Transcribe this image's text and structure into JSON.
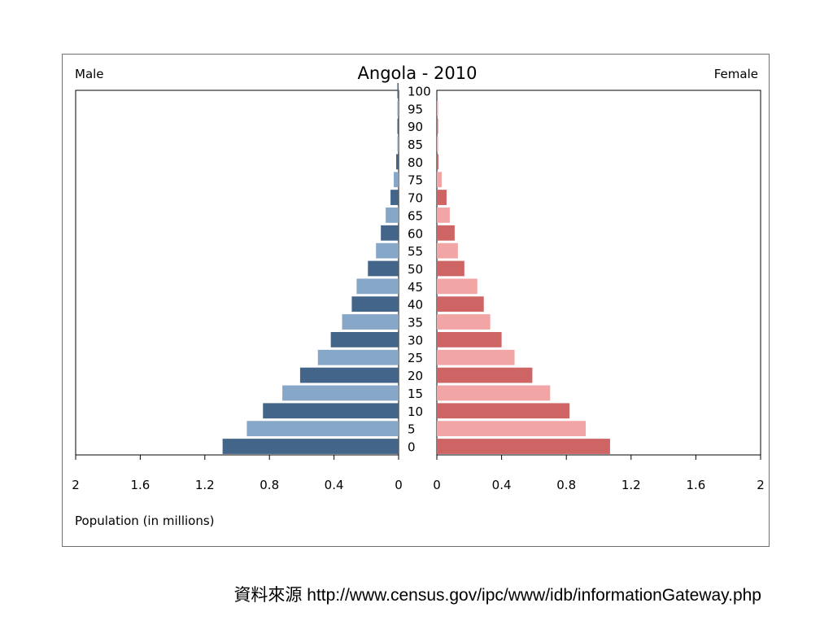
{
  "chart_data": {
    "type": "bar",
    "subtype": "population-pyramid",
    "title": "Angola - 2010",
    "left_label": "Male",
    "right_label": "Female",
    "xlabel": "Population (in millions)",
    "xlim": [
      0,
      2
    ],
    "x_ticks": [
      "2",
      "1.6",
      "1.2",
      "0.8",
      "0.4",
      "0"
    ],
    "x_ticks_right": [
      "0",
      "0.4",
      "0.8",
      "1.2",
      "1.6",
      "2"
    ],
    "categories": [
      "0",
      "5",
      "10",
      "15",
      "20",
      "25",
      "30",
      "35",
      "40",
      "45",
      "50",
      "55",
      "60",
      "65",
      "70",
      "75",
      "80",
      "85",
      "90",
      "95",
      "100"
    ],
    "series": [
      {
        "name": "Male",
        "values": [
          1.09,
          0.94,
          0.84,
          0.72,
          0.61,
          0.5,
          0.42,
          0.35,
          0.29,
          0.26,
          0.19,
          0.14,
          0.11,
          0.08,
          0.05,
          0.03,
          0.015,
          0.007,
          0.004,
          0.002,
          0.001
        ],
        "colors": [
          "#436589",
          "#87a7c9"
        ]
      },
      {
        "name": "Female",
        "values": [
          1.07,
          0.92,
          0.82,
          0.7,
          0.59,
          0.48,
          0.4,
          0.33,
          0.29,
          0.25,
          0.17,
          0.13,
          0.11,
          0.08,
          0.06,
          0.03,
          0.01,
          0.005,
          0.003,
          0.001,
          0.0
        ],
        "colors": [
          "#cf6464",
          "#f2a5a5"
        ]
      }
    ],
    "grid": false,
    "legend": "none"
  },
  "source": {
    "prefix": "資料來源",
    "url": "http://www.census.gov/ipc/www/idb/informationGateway.php"
  }
}
